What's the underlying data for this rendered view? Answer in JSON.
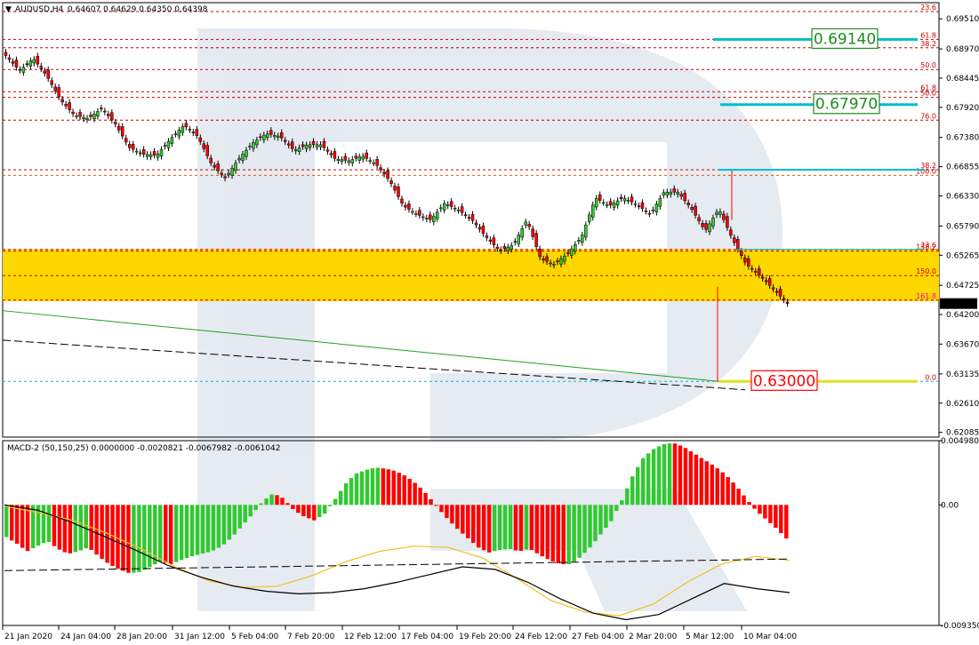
{
  "header": {
    "symbol_label": "AUDUSD,H4",
    "ohlc_label": "0.64607 0.64629 0.64350 0.64398",
    "arrow_icon": "triangle-down-icon"
  },
  "indicator": {
    "label": "MACD-2 (50,150,25) 0.0000000 -0.0020821 -0.0067982 -0.0061042"
  },
  "colors": {
    "bull_histogram": "#32c832",
    "bear_histogram": "#ff0000",
    "zone": "#ffd700",
    "fib_line": "#cc0000",
    "target_line": "#00bcd4",
    "target_label": "#1e8c1e",
    "support_label": "#ff0000",
    "trendline": "#22a022",
    "signal_line": "#f0c020"
  },
  "chart_data": [
    {
      "type": "candlestick",
      "title": "AUDUSD,H4",
      "ylim": [
        0.62,
        0.698
      ],
      "y_ticks": [
        "0.69510",
        "0.68970",
        "0.68445",
        "0.67920",
        "0.67380",
        "0.66855",
        "0.66330",
        "0.65790",
        "0.65265",
        "0.64725",
        "0.64200",
        "0.63670",
        "0.63135",
        "0.62610",
        "0.62085"
      ],
      "x_ticks": [
        "21 Jan 2020",
        "24 Jan 04:00",
        "28 Jan 20:00",
        "31 Jan 12:00",
        "5 Feb 04:00",
        "7 Feb 20:00",
        "12 Feb 12:00",
        "17 Feb 04:00",
        "19 Feb 20:00",
        "24 Feb 12:00",
        "27 Feb 04:00",
        "2 Mar 20:00",
        "5 Mar 12:00",
        "10 Mar 04:00"
      ],
      "price_path": [
        0.6885,
        0.6858,
        0.688,
        0.6848,
        0.6805,
        0.6778,
        0.6772,
        0.679,
        0.6762,
        0.672,
        0.6708,
        0.6706,
        0.6735,
        0.676,
        0.674,
        0.669,
        0.6665,
        0.67,
        0.6728,
        0.6745,
        0.674,
        0.6715,
        0.6725,
        0.6725,
        0.67,
        0.6696,
        0.6705,
        0.669,
        0.666,
        0.6615,
        0.66,
        0.659,
        0.662,
        0.6608,
        0.659,
        0.656,
        0.6535,
        0.6545,
        0.659,
        0.652,
        0.651,
        0.653,
        0.656,
        0.663,
        0.6615,
        0.663,
        0.6618,
        0.66,
        0.664,
        0.664,
        0.661,
        0.657,
        0.661,
        0.6555,
        0.651,
        0.649,
        0.6465,
        0.644
      ],
      "last_price": "0.64398",
      "zone_range": [
        0.6444,
        0.6537
      ],
      "current_price_label": "0.64398",
      "fib_levels": [
        {
          "label": "23.6",
          "price": 0.6964
        },
        {
          "label": "61.8",
          "price": 0.6914
        },
        {
          "label": "38.2",
          "price": 0.6899
        },
        {
          "label": "50.0",
          "price": 0.686
        },
        {
          "label": "61.8",
          "price": 0.682
        },
        {
          "label": "50.0",
          "price": 0.681
        },
        {
          "label": "76.0",
          "price": 0.6769
        },
        {
          "label": "38.2",
          "price": 0.668
        },
        {
          "label": "100.0",
          "price": 0.667
        },
        {
          "label": "23.6",
          "price": 0.6537
        },
        {
          "label": "138.2",
          "price": 0.6534
        },
        {
          "label": "150.0",
          "price": 0.649
        },
        {
          "label": "161.8",
          "price": 0.6446
        },
        {
          "label": "0.0",
          "price": 0.63
        }
      ],
      "targets": [
        {
          "label": "0.69140",
          "price": 0.6914,
          "kind": "target"
        },
        {
          "label": "0.67970",
          "price": 0.6797,
          "kind": "target"
        },
        {
          "label": "0.63000",
          "price": 0.63,
          "kind": "support"
        }
      ]
    },
    {
      "type": "bar",
      "title": "MACD-2 (50,150,25) 0.0000000 -0.0020821 -0.0067982 -0.0061042",
      "ylim": [
        -0.00935,
        0.00498
      ],
      "y_ticks": [
        "0.0049805",
        "0.00",
        "-0.009350"
      ],
      "histogram": [
        -2.5,
        -3.0,
        -3.6,
        -3.2,
        -2.8,
        -3.4,
        -3.8,
        -3.6,
        -3.3,
        -4.0,
        -4.6,
        -5.0,
        -5.3,
        -5.2,
        -4.8,
        -4.4,
        -4.6,
        -4.3,
        -4.0,
        -3.8,
        -3.6,
        -3.2,
        -2.5,
        -1.6,
        -0.7,
        0.3,
        0.9,
        0.5,
        -0.4,
        -0.9,
        -1.2,
        -0.7,
        0.4,
        1.6,
        2.4,
        2.7,
        2.9,
        2.8,
        2.6,
        2.2,
        1.6,
        0.8,
        -0.2,
        -1.1,
        -1.9,
        -2.6,
        -3.3,
        -3.7,
        -3.5,
        -3.4,
        -3.6,
        -3.4,
        -3.9,
        -4.3,
        -4.6,
        -4.6,
        -4.0,
        -3.2,
        -2.2,
        -1.2,
        0.4,
        2.2,
        3.6,
        4.3,
        4.7,
        4.8,
        4.5,
        4.0,
        3.5,
        3.0,
        2.4,
        1.6,
        0.6,
        -0.4,
        -1.1,
        -1.8,
        -2.6
      ],
      "signal_path": [
        -0.1,
        -0.6,
        -1.2,
        -2.2,
        -3.4,
        -4.8,
        -5.9,
        -6.4,
        -6.3,
        -5.5,
        -4.4,
        -3.6,
        -3.2,
        -3.3,
        -4.1,
        -5.7,
        -7.4,
        -8.3,
        -8.6,
        -7.7,
        -6.0,
        -4.6,
        -4.0,
        -4.3
      ],
      "macd_path": [
        0.0,
        -0.4,
        -1.3,
        -2.4,
        -3.5,
        -4.7,
        -5.6,
        -6.3,
        -6.7,
        -6.9,
        -6.8,
        -6.5,
        -6.0,
        -5.4,
        -4.8,
        -5.0,
        -6.0,
        -7.3,
        -8.4,
        -8.9,
        -8.5,
        -7.3,
        -6.1,
        -6.5,
        -6.8
      ]
    }
  ]
}
